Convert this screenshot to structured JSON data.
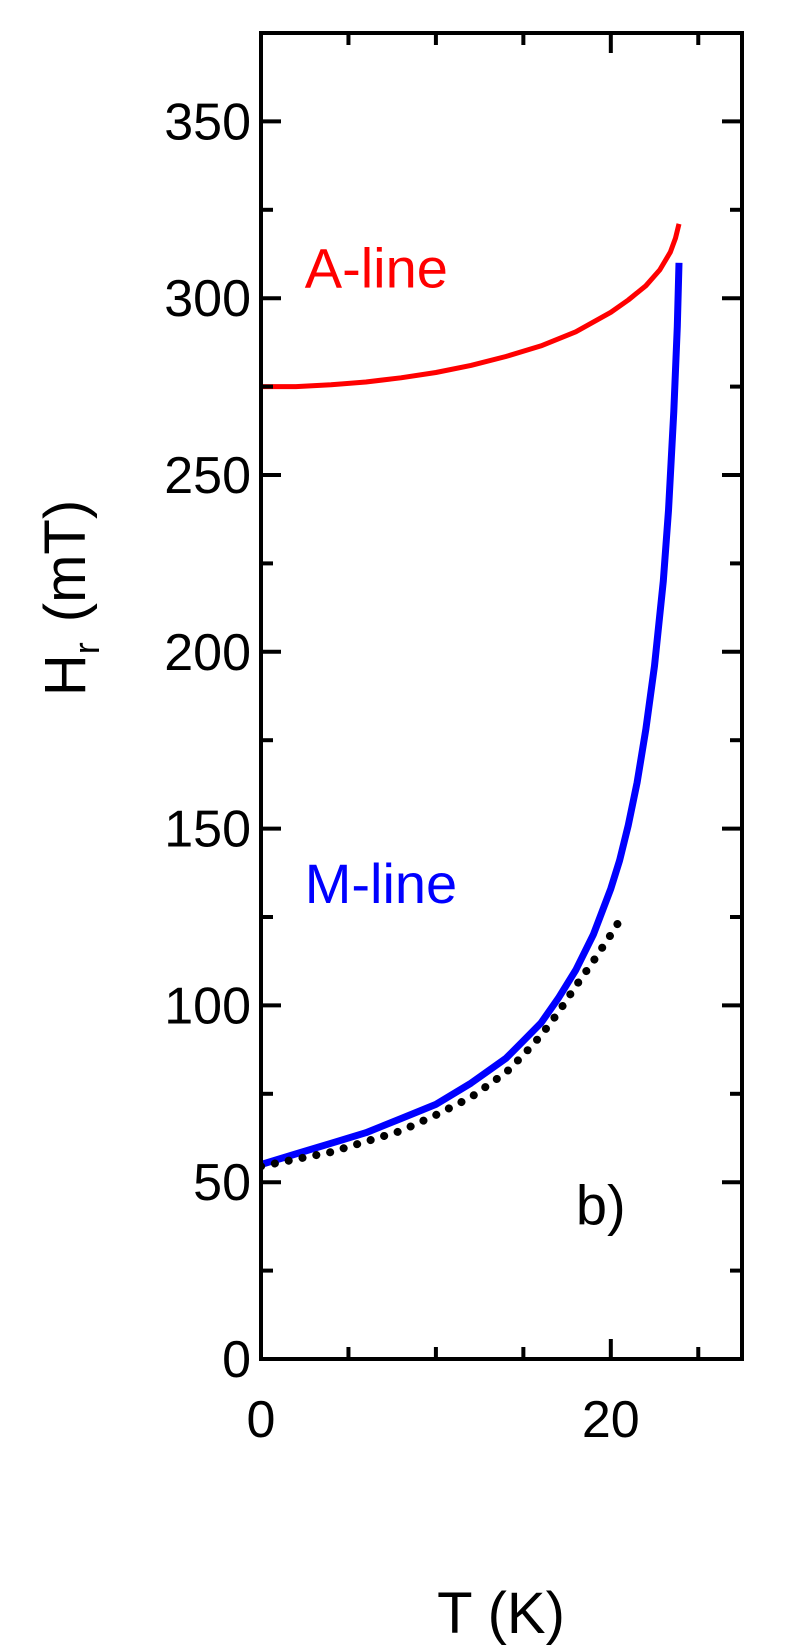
{
  "chart_data": {
    "type": "line",
    "xlabel": "T (K)",
    "ylabel_main": "H",
    "ylabel_sub": "r",
    "ylabel_unit": "(mT)",
    "xlim": [
      0,
      27.5
    ],
    "ylim": [
      0,
      375
    ],
    "x_ticks_major": [
      0,
      20
    ],
    "x_ticks_minor": [
      5,
      10,
      15,
      25
    ],
    "y_ticks_major": [
      0,
      50,
      100,
      150,
      200,
      250,
      300,
      350
    ],
    "y_ticks_minor": [
      25,
      75,
      125,
      175,
      225,
      275,
      325
    ],
    "grid": false,
    "series": [
      {
        "name": "A-line",
        "color": "#ff0000",
        "style": "solid",
        "x": [
          0,
          2,
          4,
          6,
          8,
          10,
          12,
          14,
          16,
          18,
          20,
          21,
          22,
          22.8,
          23.4,
          23.7,
          23.9
        ],
        "y": [
          275,
          275,
          275.5,
          276.3,
          277.5,
          279,
          281,
          283.5,
          286.5,
          290.5,
          296,
          299.5,
          303.5,
          308,
          313,
          317,
          321
        ]
      },
      {
        "name": "M-line",
        "color": "#0000ff",
        "style": "solid",
        "x": [
          0,
          2,
          4,
          6,
          8,
          10,
          12,
          14,
          15,
          16,
          17,
          18,
          19,
          20,
          20.5,
          21,
          21.5,
          22,
          22.5,
          23,
          23.3,
          23.6,
          23.8,
          23.9
        ],
        "y": [
          55,
          58,
          61,
          64,
          68,
          72,
          78,
          85,
          90,
          95,
          102,
          110,
          120,
          133,
          141,
          151,
          163,
          178,
          196,
          220,
          240,
          268,
          292,
          310
        ]
      },
      {
        "name": "",
        "color": "#000000",
        "style": "dotted",
        "x": [
          0,
          2,
          4,
          6,
          8,
          10,
          12,
          14,
          15,
          16,
          17,
          18,
          19,
          20,
          20.5
        ],
        "y": [
          54.5,
          56.5,
          58.5,
          61.5,
          64.5,
          69,
          74,
          81,
          86,
          91.5,
          98,
          105.5,
          112.5,
          120,
          124
        ]
      }
    ],
    "annotations": [
      {
        "text": "A-line",
        "x": 2.5,
        "y": 303,
        "color": "#ff0000"
      },
      {
        "text": "M-line",
        "x": 2.5,
        "y": 129,
        "color": "#0000ff"
      },
      {
        "text": "b)",
        "x": 18,
        "y": 38,
        "color": "#000000"
      }
    ]
  }
}
